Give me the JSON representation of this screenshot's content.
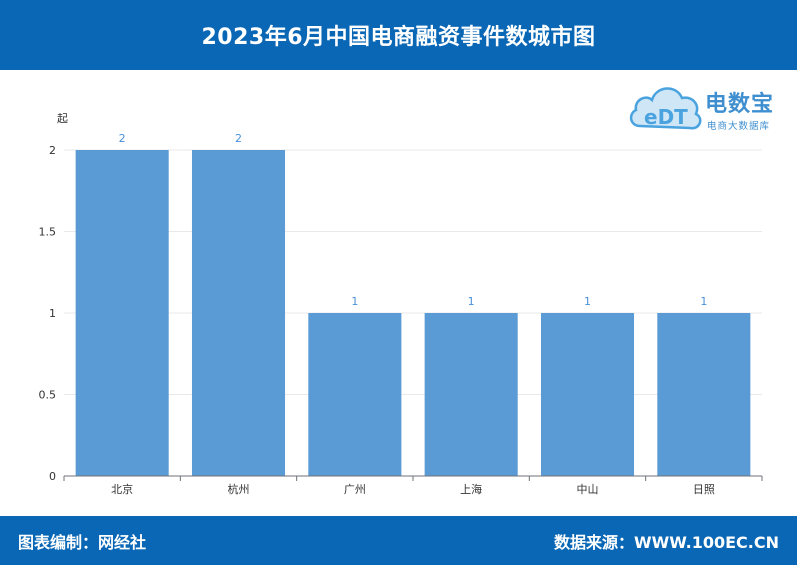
{
  "header": {
    "title": "2023年6月中国电商融资事件数城市图"
  },
  "logo": {
    "name": "电数宝",
    "subtitle": "电商大数据库",
    "mark_text": "eDT"
  },
  "footer": {
    "editor": "图表编制：网经社",
    "source": "数据来源：WWW.100EC.CN"
  },
  "colors": {
    "bar": "#5b9bd5",
    "label": "#4a90d9",
    "header_bg": "#0a67b5"
  },
  "chart_data": {
    "type": "bar",
    "categories": [
      "北京",
      "杭州",
      "广州",
      "上海",
      "中山",
      "日照"
    ],
    "values": [
      2,
      2,
      1,
      1,
      1,
      1
    ],
    "ylabel": "起",
    "yticks": [
      "0",
      "0.5",
      "1",
      "1.5",
      "2"
    ],
    "ylim": [
      0,
      2
    ],
    "grid": true,
    "legend": "none"
  }
}
